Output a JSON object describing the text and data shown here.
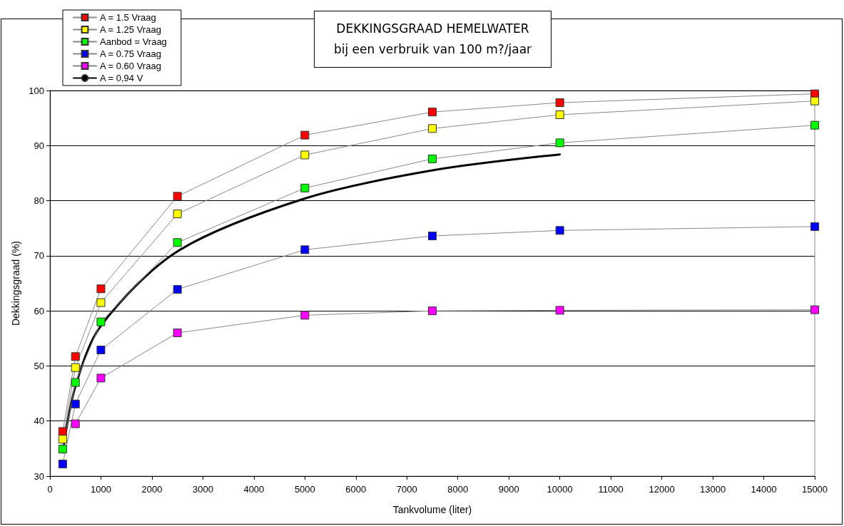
{
  "chart_data": {
    "type": "line",
    "title": "DEKKINGSGRAAD HEMELWATER",
    "subtitle": "bij een verbruik van 100 m?/jaar",
    "xlabel": "Tankvolume (liter)",
    "ylabel": "Dekkingsgraad (%)",
    "x": [
      250,
      500,
      1000,
      2500,
      5000,
      7500,
      10000,
      15000
    ],
    "xlim": [
      0,
      15000
    ],
    "xticks": [
      0,
      1000,
      2000,
      3000,
      4000,
      5000,
      6000,
      7000,
      8000,
      9000,
      10000,
      11000,
      12000,
      13000,
      14000,
      15000
    ],
    "ylim": [
      30,
      100
    ],
    "yticks": [
      30,
      40,
      50,
      60,
      70,
      80,
      90,
      100
    ],
    "grid": "y",
    "legend": "top left",
    "marker": "square",
    "line_style": "solid",
    "series": [
      {
        "name": "A = 1.5 Vraag",
        "color": "#ff0000",
        "values": [
          38.1,
          51.7,
          64.0,
          80.8,
          91.9,
          96.1,
          97.8,
          99.4
        ]
      },
      {
        "name": "A = 1.25 Vraag",
        "color": "#ffff00",
        "values": [
          36.7,
          49.7,
          61.5,
          77.6,
          88.3,
          93.1,
          95.6,
          98.1
        ]
      },
      {
        "name": "Aanbod = Vraag",
        "color": "#00ff00",
        "values": [
          34.9,
          47.0,
          58.0,
          72.4,
          82.3,
          87.6,
          90.5,
          93.7
        ]
      },
      {
        "name": "A = 0.75 Vraag",
        "color": "#0000ff",
        "values": [
          32.2,
          43.1,
          52.9,
          63.9,
          71.1,
          73.6,
          74.6,
          75.3
        ]
      },
      {
        "name": "A = 0.60 Vraag",
        "color": "#ff00ff",
        "values": [
          null,
          39.5,
          47.8,
          56.0,
          59.2,
          60.0,
          60.1,
          60.2
        ]
      },
      {
        "name": "A = 0,94 V",
        "color": "#000000",
        "marker": "none",
        "x": [
          250,
          500,
          1000,
          2500,
          5000,
          7500,
          10000
        ],
        "values": [
          34.3,
          46.3,
          57.3,
          70.8,
          80.4,
          85.5,
          88.4
        ]
      }
    ]
  }
}
